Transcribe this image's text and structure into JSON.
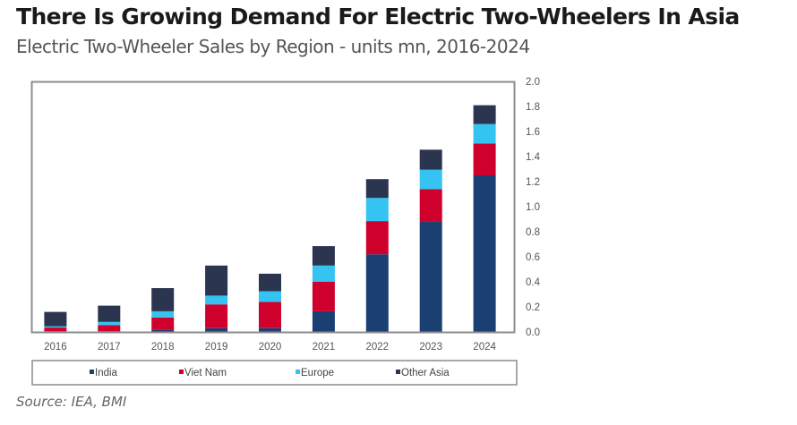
{
  "header": {
    "title": "There Is Growing Demand For Electric Two-Wheelers In Asia",
    "subtitle": "Electric Two-Wheeler Sales by Region - units mn, 2016-2024"
  },
  "footer": {
    "source": "Source: IEA, BMI"
  },
  "chart_data": {
    "type": "bar",
    "stacked": true,
    "title": "There Is Growing Demand For Electric Two-Wheelers In Asia",
    "subtitle": "Electric Two-Wheeler Sales by Region - units mn, 2016-2024",
    "xlabel": "",
    "ylabel": "units mn",
    "categories": [
      "2016",
      "2017",
      "2018",
      "2019",
      "2020",
      "2021",
      "2022",
      "2023",
      "2024"
    ],
    "ylim": [
      0,
      2.0
    ],
    "yticks": [
      "0.0",
      "0.2",
      "0.4",
      "0.6",
      "0.8",
      "1.0",
      "1.2",
      "1.4",
      "1.6",
      "1.8",
      "2.0"
    ],
    "y_axis_side": "right",
    "grid": false,
    "legend_position": "bottom",
    "series": [
      {
        "name": "India",
        "color": "#1b3f73",
        "values": [
          0.005,
          0.005,
          0.015,
          0.03,
          0.03,
          0.165,
          0.62,
          0.885,
          1.25
        ]
      },
      {
        "name": "Viet Nam",
        "color": "#d0002d",
        "values": [
          0.03,
          0.05,
          0.1,
          0.19,
          0.21,
          0.235,
          0.265,
          0.255,
          0.255
        ]
      },
      {
        "name": "Europe",
        "color": "#35c3f2",
        "values": [
          0.01,
          0.025,
          0.05,
          0.07,
          0.085,
          0.13,
          0.185,
          0.155,
          0.155
        ]
      },
      {
        "name": "Other Asia",
        "color": "#2c3550",
        "values": [
          0.115,
          0.13,
          0.185,
          0.24,
          0.14,
          0.155,
          0.15,
          0.16,
          0.15
        ]
      }
    ],
    "source": "Source: IEA, BMI"
  }
}
